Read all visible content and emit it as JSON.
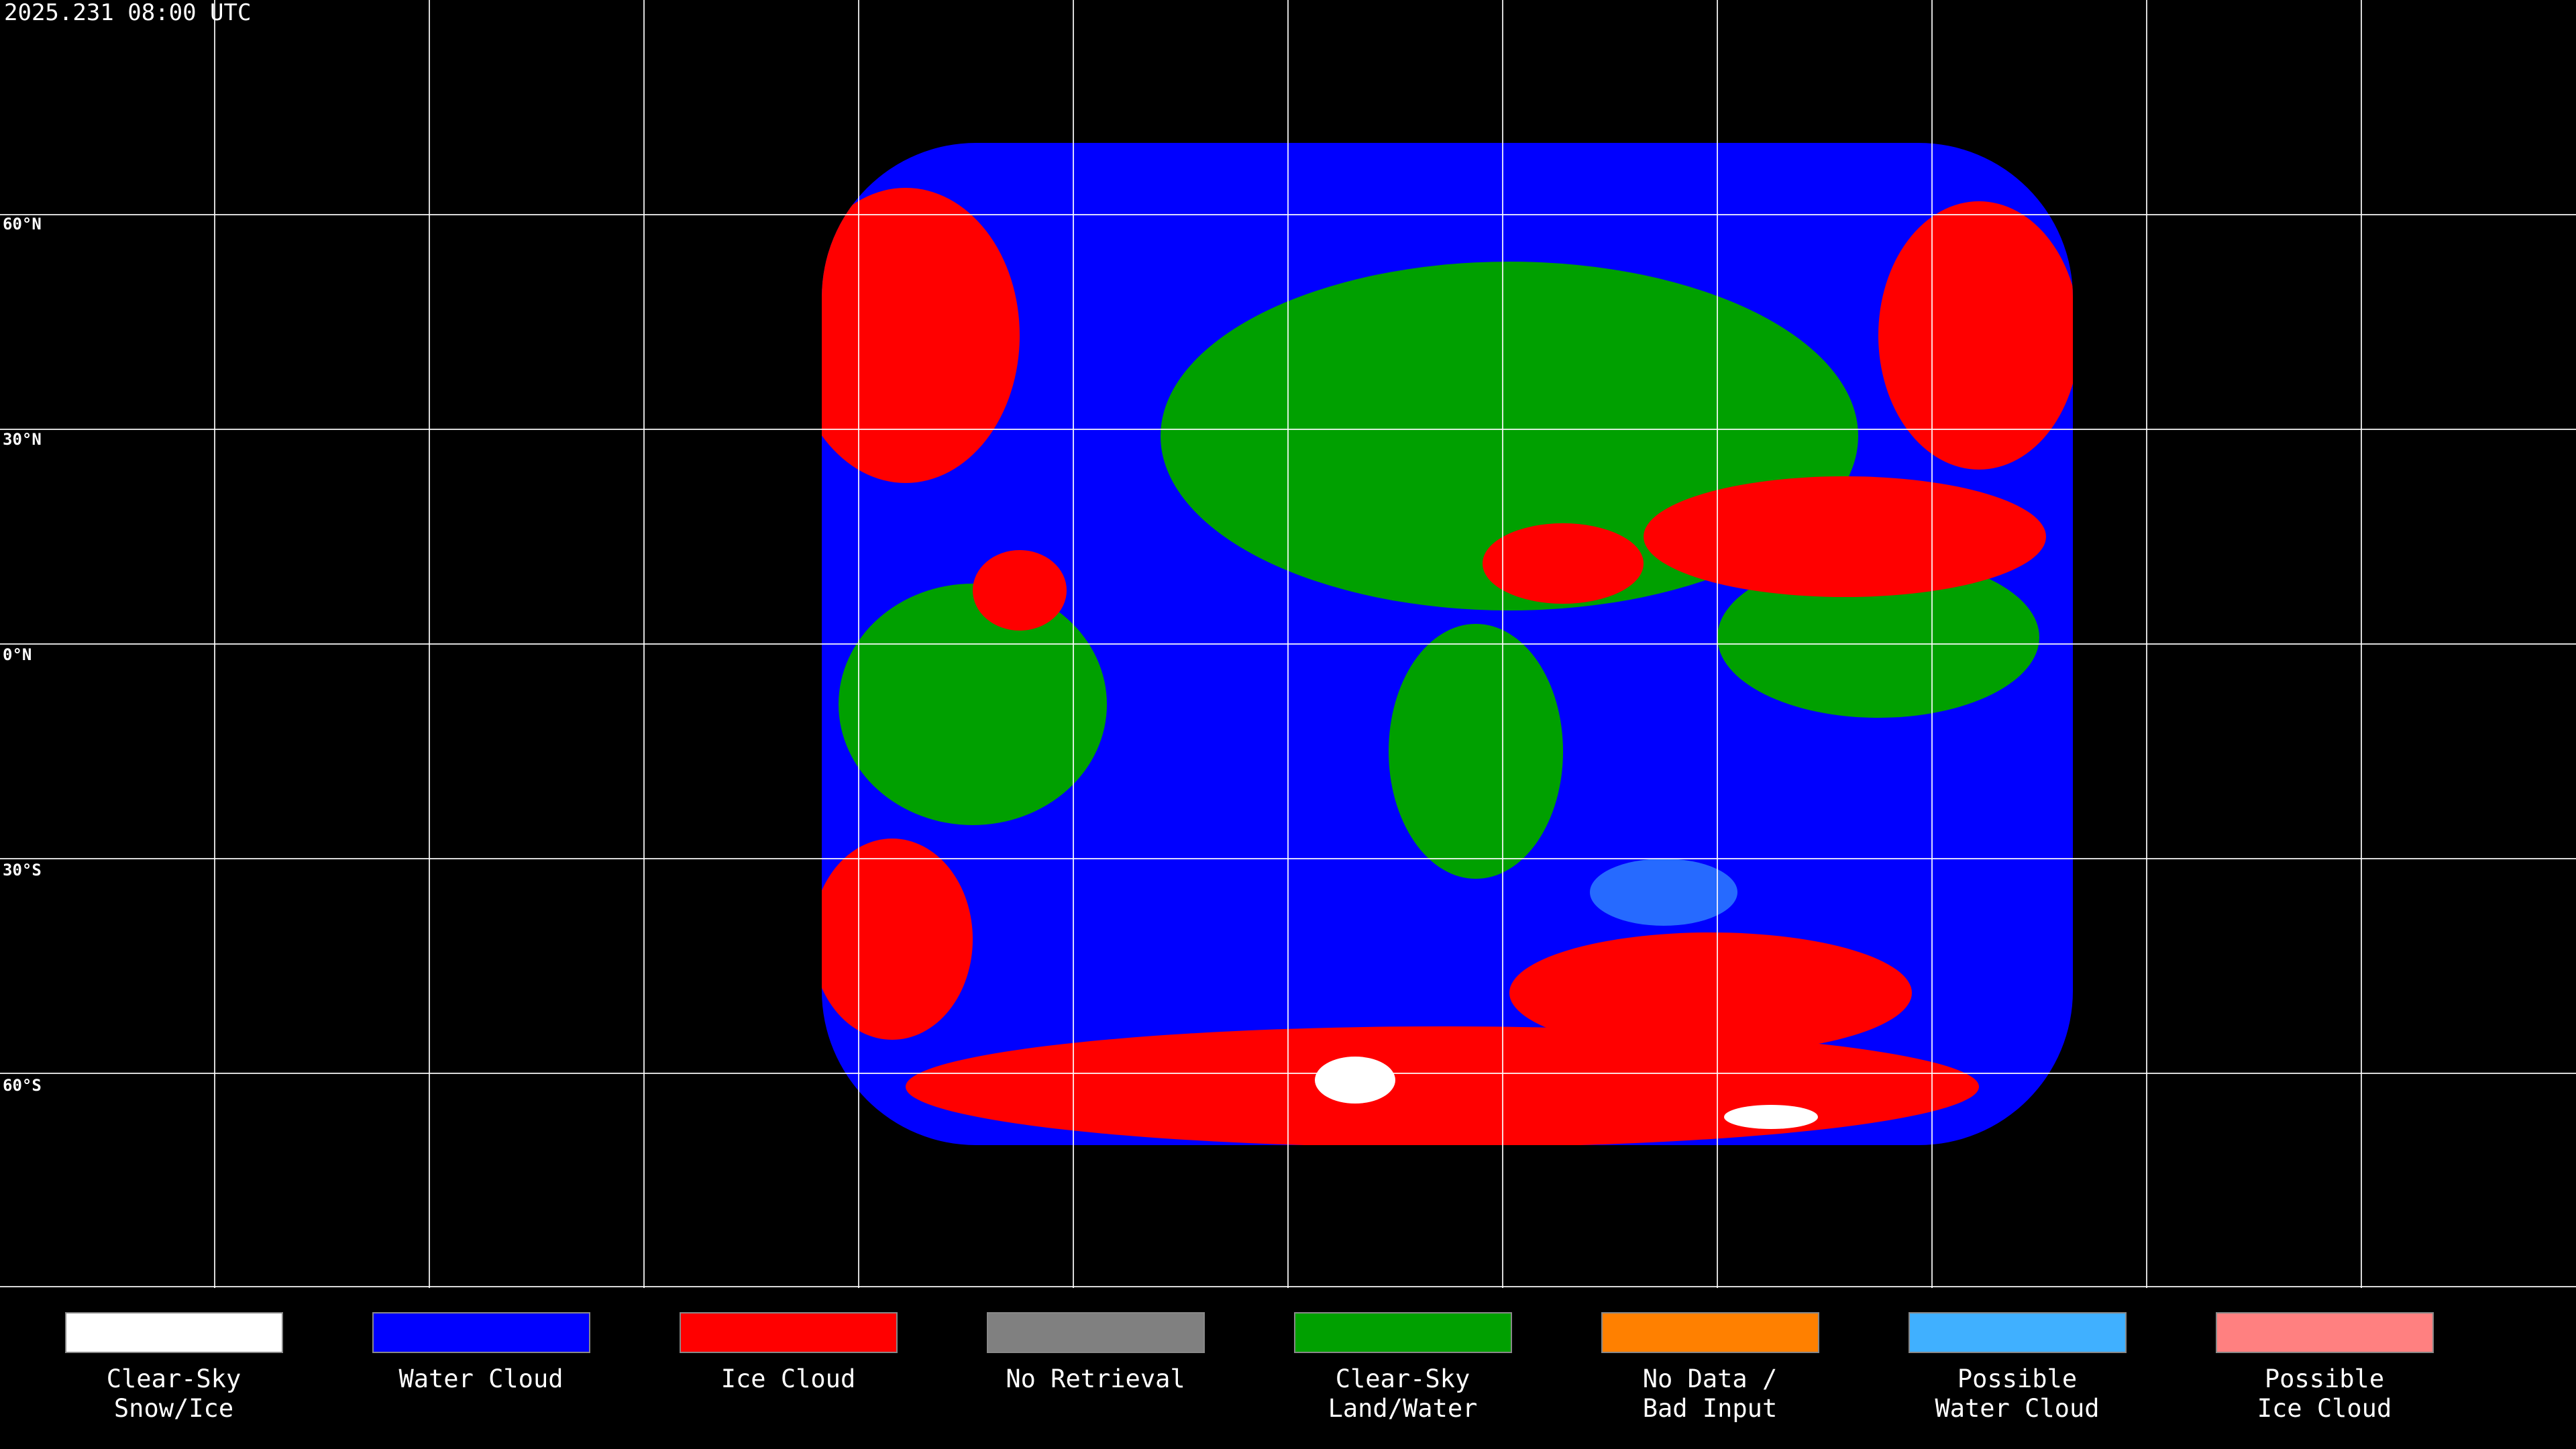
{
  "timestamp": "2025.231 08:00 UTC",
  "lat_labels": [
    "60°N",
    "30°N",
    "0°N",
    "30°S",
    "60°S"
  ],
  "legend": [
    {
      "label": [
        "Clear-Sky",
        "Snow/Ice"
      ],
      "color": "#ffffff"
    },
    {
      "label": [
        "Water Cloud"
      ],
      "color": "#0000ff"
    },
    {
      "label": [
        "Ice Cloud"
      ],
      "color": "#ff0000"
    },
    {
      "label": [
        "No Retrieval"
      ],
      "color": "#808080"
    },
    {
      "label": [
        "Clear-Sky",
        "Land/Water"
      ],
      "color": "#00a000"
    },
    {
      "label": [
        "No Data /",
        "Bad Input"
      ],
      "color": "#ff8000"
    },
    {
      "label": [
        "Possible",
        "Water Cloud"
      ],
      "color": "#40b0ff"
    },
    {
      "label": [
        "Possible",
        "Ice Cloud"
      ],
      "color": "#ff8080"
    }
  ]
}
